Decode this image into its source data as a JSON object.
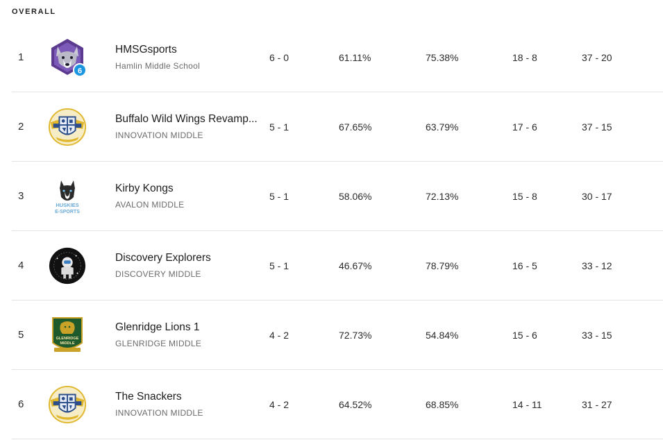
{
  "section": {
    "title": "OVERALL"
  },
  "rows": [
    {
      "rank": "1",
      "team": "HMSGsports",
      "school": "Hamlin Middle School",
      "logo": "wolf-logo",
      "badge": "6",
      "record": "6 - 0",
      "pct1": "61.11%",
      "pct2": "75.38%",
      "games": "18 - 8",
      "rounds": "37 - 20"
    },
    {
      "rank": "2",
      "team": "Buffalo Wild Wings Revamp...",
      "school": "INNOVATION MIDDLE",
      "logo": "innovation-crest-logo",
      "record": "5 - 1",
      "pct1": "67.65%",
      "pct2": "63.79%",
      "games": "17 - 6",
      "rounds": "37 - 15"
    },
    {
      "rank": "3",
      "team": "Kirby Kongs",
      "school": "AVALON MIDDLE",
      "logo": "huskies-logo",
      "logo_text": [
        "HUSKIES",
        "E-SPORTS"
      ],
      "record": "5 - 1",
      "pct1": "58.06%",
      "pct2": "72.13%",
      "games": "15 - 8",
      "rounds": "30 - 17"
    },
    {
      "rank": "4",
      "team": "Discovery Explorers",
      "school": "DISCOVERY MIDDLE",
      "logo": "astronaut-logo",
      "record": "5 - 1",
      "pct1": "46.67%",
      "pct2": "78.79%",
      "games": "16 - 5",
      "rounds": "33 - 12"
    },
    {
      "rank": "5",
      "team": "Glenridge Lions 1",
      "school": "GLENRIDGE MIDDLE",
      "logo": "lion-shield-logo",
      "logo_text": [
        "GLENRIDGE",
        "MIDDLE"
      ],
      "record": "4 - 2",
      "pct1": "72.73%",
      "pct2": "54.84%",
      "games": "15 - 6",
      "rounds": "33 - 15"
    },
    {
      "rank": "6",
      "team": "The Snackers",
      "school": "INNOVATION MIDDLE",
      "logo": "innovation-crest-logo",
      "record": "4 - 2",
      "pct1": "64.52%",
      "pct2": "68.85%",
      "games": "14 - 11",
      "rounds": "31 - 27"
    }
  ],
  "colors": {
    "divider": "#e3e3e3",
    "wolf_purple": "#5b3a8f",
    "badge_blue": "#1a95e0",
    "crest_gold": "#e0b72c",
    "lion_green": "#1f5a2c"
  }
}
